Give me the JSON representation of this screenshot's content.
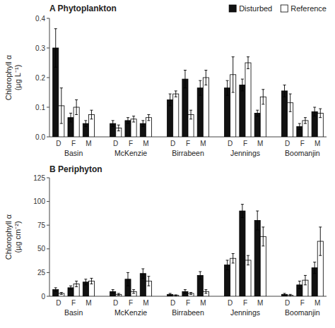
{
  "chart_data": [
    {
      "type": "bar",
      "title": "A Phytoplankton",
      "y_label": "Chlorophyll α\n(µg L⁻¹)",
      "categories": [
        "D",
        "F",
        "M",
        "D",
        "F",
        "M",
        "D",
        "F",
        "M",
        "D",
        "F",
        "M",
        "D",
        "F",
        "M"
      ],
      "groups": [
        "Basin",
        "McKenzie",
        "Birrabeen",
        "Jennings",
        "Boomanjin"
      ],
      "series": [
        {
          "name": "Disturbed",
          "color": "#111111",
          "values": [
            0.3,
            0.065,
            0.045,
            0.045,
            0.055,
            0.045,
            0.125,
            0.195,
            0.165,
            0.165,
            0.175,
            0.08,
            0.155,
            0.035,
            0.085
          ],
          "errors": [
            0.065,
            0.015,
            0.01,
            0.01,
            0.01,
            0.01,
            0.02,
            0.03,
            0.025,
            0.025,
            0.02,
            0.01,
            0.02,
            0.01,
            0.015
          ]
        },
        {
          "name": "Reference",
          "color": "#ffffff",
          "values": [
            0.105,
            0.1,
            0.075,
            0.03,
            0.06,
            0.065,
            0.145,
            0.075,
            0.2,
            0.21,
            0.25,
            0.135,
            0.115,
            0.055,
            0.08
          ],
          "errors": [
            0.06,
            0.025,
            0.015,
            0.01,
            0.01,
            0.01,
            0.01,
            0.015,
            0.025,
            0.06,
            0.02,
            0.025,
            0.03,
            0.01,
            0.015
          ]
        }
      ],
      "ylim": [
        0,
        0.4
      ],
      "yticks": [
        {
          "value": 0,
          "label": "0.0"
        },
        0.1,
        0.2,
        0.3,
        0.4
      ],
      "grid": false,
      "legend": "upper right"
    },
    {
      "type": "bar",
      "title": "B Periphyton",
      "y_label": "Chlorophyll α\n(µg cm⁻²)",
      "categories": [
        "D",
        "F",
        "M",
        "D",
        "F",
        "M",
        "D",
        "F",
        "M",
        "D",
        "F",
        "M",
        "D",
        "F",
        "M"
      ],
      "groups": [
        "Basin",
        "McKenzie",
        "Birrabeen",
        "Jennings",
        "Boomanjin"
      ],
      "series": [
        {
          "color": "#111111",
          "values": [
            7,
            9,
            15,
            5,
            18,
            24,
            2,
            5,
            22,
            33,
            90,
            80,
            2,
            12,
            30
          ],
          "errors": [
            2,
            2,
            3,
            2,
            7,
            5,
            1,
            2,
            4,
            5,
            7,
            10,
            1,
            4,
            6
          ]
        },
        {
          "color": "#ffffff",
          "values": [
            3,
            13,
            16,
            2,
            5,
            16,
            1,
            3,
            5,
            40,
            38,
            63,
            1,
            17,
            58
          ],
          "errors": [
            1,
            3,
            3,
            1,
            2,
            5,
            0.5,
            1,
            2,
            5,
            5,
            10,
            1,
            5,
            15
          ]
        }
      ],
      "ylim": [
        0,
        125
      ],
      "yticks": [
        0,
        25,
        50,
        75,
        100,
        125
      ],
      "grid": false
    }
  ]
}
